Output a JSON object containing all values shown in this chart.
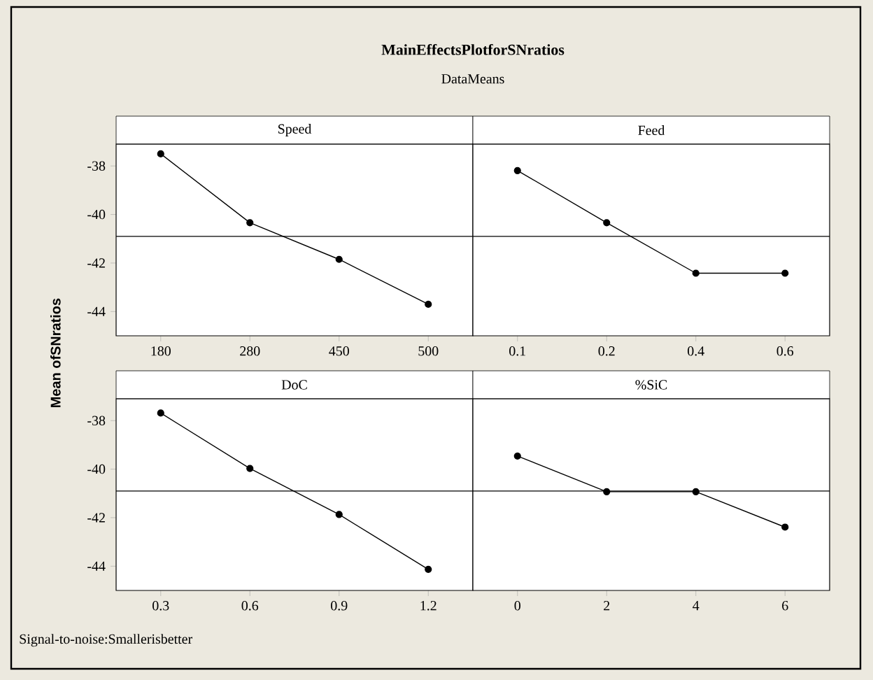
{
  "chart_data": [
    {
      "type": "line",
      "title": "MainEffectsPlotforSNratios",
      "subtitle": "DataMeans",
      "ylabel": "Mean ofSNratios",
      "xlabel": "Speed",
      "categories": [
        "180",
        "280",
        "450",
        "500"
      ],
      "values": [
        -37.5,
        -40.34,
        -41.85,
        -43.7
      ],
      "color": "#000000",
      "marker": "circle",
      "line_style": "solid",
      "ylim": [
        -45,
        -37.1
      ],
      "yticks": [
        -44,
        -42,
        -40,
        -38
      ],
      "ref_lines": [
        {
          "axis": "y",
          "value": -40.9
        }
      ]
    },
    {
      "type": "line",
      "xlabel": "Feed",
      "categories": [
        "0.1",
        "0.2",
        "0.4",
        "0.6"
      ],
      "values": [
        -38.19,
        -40.34,
        -42.42,
        -42.42
      ],
      "color": "#000000",
      "marker": "circle",
      "line_style": "solid",
      "ylim": [
        -45,
        -37.1
      ],
      "tick_labels": "x",
      "ref_lines": [
        {
          "axis": "y",
          "value": -40.9
        }
      ]
    },
    {
      "type": "line",
      "xlabel": "DoC",
      "categories": [
        "0.3",
        "0.6",
        "0.9",
        "1.2"
      ],
      "values": [
        -37.69,
        -39.97,
        -41.87,
        -44.13
      ],
      "color": "#000000",
      "marker": "circle",
      "line_style": "solid",
      "ylim": [
        -45,
        -37.1
      ],
      "yticks": [
        -44,
        -42,
        -40,
        -38
      ],
      "ref_lines": [
        {
          "axis": "y",
          "value": -40.9
        }
      ],
      "annotations": [
        "Signal-to-noise:Smallerisbetter"
      ]
    },
    {
      "type": "line",
      "xlabel": "%SiC",
      "categories": [
        "0",
        "2",
        "4",
        "6"
      ],
      "values": [
        -39.46,
        -40.93,
        -40.93,
        -42.39
      ],
      "color": "#000000",
      "marker": "circle",
      "line_style": "solid",
      "ylim": [
        -45,
        -37.1
      ],
      "tick_labels": "x",
      "ref_lines": [
        {
          "axis": "y",
          "value": -40.9
        }
      ]
    }
  ]
}
